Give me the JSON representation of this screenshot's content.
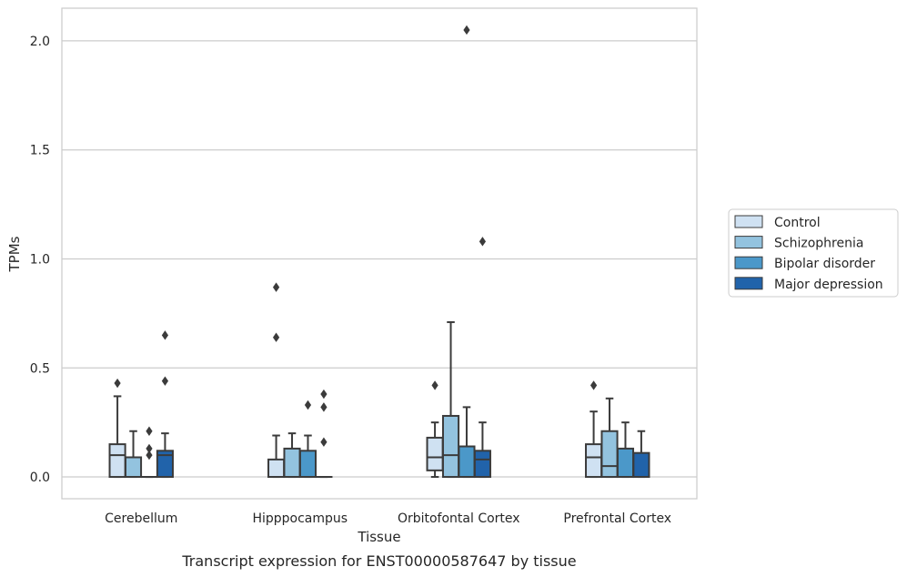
{
  "caption": "Transcript expression for ENST00000587647 by tissue",
  "chart_data": {
    "type": "boxplot",
    "xlabel": "Tissue",
    "ylabel": "TPMs",
    "ylim": [
      -0.1,
      2.15
    ],
    "yticks": [
      "0.0",
      "0.5",
      "1.0",
      "1.5",
      "2.0"
    ],
    "grid": "horizontal",
    "legend_position": "right",
    "categories": [
      "Cerebellum",
      "Hipppocampus",
      "Orbitofontal Cortex",
      "Prefrontal Cortex"
    ],
    "series": [
      {
        "name": "Control",
        "color": "#cfe1f2",
        "boxes": [
          {
            "whislo": 0.0,
            "q1": 0.0,
            "med": 0.1,
            "q3": 0.15,
            "whishi": 0.37,
            "fliers": [
              0.43
            ]
          },
          {
            "whislo": 0.0,
            "q1": 0.0,
            "med": 0.0,
            "q3": 0.08,
            "whishi": 0.19,
            "fliers": [
              0.64,
              0.87
            ]
          },
          {
            "whislo": 0.0,
            "q1": 0.03,
            "med": 0.09,
            "q3": 0.18,
            "whishi": 0.25,
            "fliers": [
              0.42
            ]
          },
          {
            "whislo": 0.0,
            "q1": 0.0,
            "med": 0.09,
            "q3": 0.15,
            "whishi": 0.3,
            "fliers": [
              0.42
            ]
          }
        ]
      },
      {
        "name": "Schizophrenia",
        "color": "#93c3df",
        "boxes": [
          {
            "whislo": 0.0,
            "q1": 0.0,
            "med": 0.0,
            "q3": 0.09,
            "whishi": 0.21,
            "fliers": []
          },
          {
            "whislo": 0.0,
            "q1": 0.0,
            "med": 0.0,
            "q3": 0.13,
            "whishi": 0.2,
            "fliers": []
          },
          {
            "whislo": 0.0,
            "q1": 0.0,
            "med": 0.1,
            "q3": 0.28,
            "whishi": 0.71,
            "fliers": []
          },
          {
            "whislo": 0.0,
            "q1": 0.0,
            "med": 0.05,
            "q3": 0.21,
            "whishi": 0.36,
            "fliers": []
          }
        ]
      },
      {
        "name": "Bipolar disorder",
        "color": "#4b98c9",
        "boxes": [
          {
            "whislo": 0.0,
            "q1": 0.0,
            "med": 0.0,
            "q3": 0.0,
            "whishi": 0.0,
            "fliers": [
              0.1,
              0.13,
              0.21
            ]
          },
          {
            "whislo": 0.0,
            "q1": 0.0,
            "med": 0.0,
            "q3": 0.12,
            "whishi": 0.19,
            "fliers": [
              0.33
            ]
          },
          {
            "whislo": 0.0,
            "q1": 0.0,
            "med": 0.0,
            "q3": 0.14,
            "whishi": 0.32,
            "fliers": [
              2.05
            ]
          },
          {
            "whislo": 0.0,
            "q1": 0.0,
            "med": 0.0,
            "q3": 0.13,
            "whishi": 0.25,
            "fliers": []
          }
        ]
      },
      {
        "name": "Major depression",
        "color": "#2163aa",
        "boxes": [
          {
            "whislo": 0.0,
            "q1": 0.0,
            "med": 0.1,
            "q3": 0.12,
            "whishi": 0.2,
            "fliers": [
              0.44,
              0.65
            ]
          },
          {
            "whislo": 0.0,
            "q1": 0.0,
            "med": 0.0,
            "q3": 0.0,
            "whishi": 0.0,
            "fliers": [
              0.16,
              0.32,
              0.38
            ]
          },
          {
            "whislo": 0.0,
            "q1": 0.0,
            "med": 0.08,
            "q3": 0.12,
            "whishi": 0.25,
            "fliers": [
              1.08
            ]
          },
          {
            "whislo": 0.0,
            "q1": 0.0,
            "med": 0.0,
            "q3": 0.11,
            "whishi": 0.21,
            "fliers": []
          }
        ]
      }
    ]
  }
}
